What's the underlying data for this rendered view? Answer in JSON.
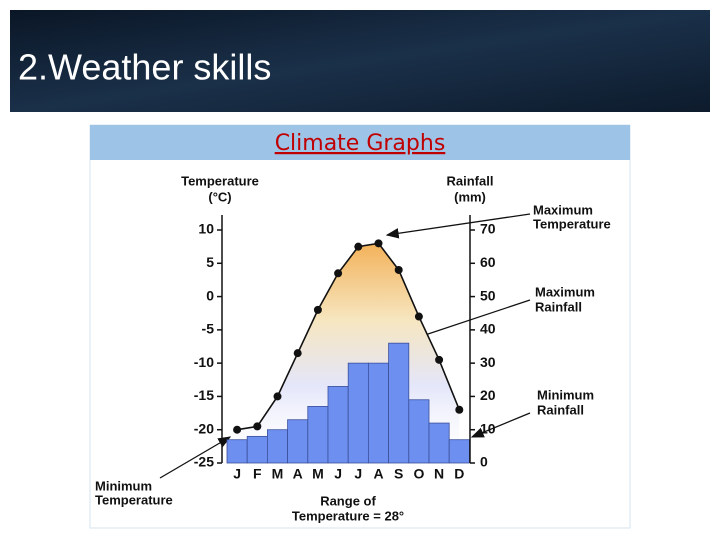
{
  "slide_title": "2.Weather skills",
  "chart_data": {
    "type": "climate",
    "title": "Climate Graphs",
    "ylabel": [
      "Temperature",
      "(°C)"
    ],
    "y2label": [
      "Rainfall",
      "(mm)"
    ],
    "categories": [
      "J",
      "F",
      "M",
      "A",
      "M",
      "J",
      "J",
      "A",
      "S",
      "O",
      "N",
      "D"
    ],
    "series": [
      {
        "name": "Rainfall",
        "type": "bar",
        "axis": "y2",
        "color": "#6d8ff0",
        "values": [
          7,
          8,
          10,
          13,
          17,
          23,
          30,
          30,
          36,
          19,
          12,
          7
        ]
      },
      {
        "name": "Temperature",
        "type": "line",
        "axis": "y",
        "color": "#111111",
        "values": [
          -20,
          -19.5,
          -15,
          -8.5,
          -2,
          3.5,
          7.5,
          8,
          4,
          -3,
          -9.5,
          -17
        ]
      }
    ],
    "ylim": [
      -25,
      10
    ],
    "yticks": [
      -25,
      -20,
      -15,
      -10,
      -5,
      0,
      5,
      10
    ],
    "y2lim": [
      0,
      70
    ],
    "y2ticks": [
      0,
      10,
      20,
      30,
      40,
      50,
      60,
      70
    ],
    "annotations": {
      "max_temperature": [
        "Maximum",
        "Temperature"
      ],
      "max_rainfall": [
        "Maximum",
        "Rainfall"
      ],
      "min_rainfall": [
        "Minimum",
        "Rainfall"
      ],
      "min_temperature": [
        "Minimum",
        "Temperature"
      ],
      "range": [
        "Range of",
        "Temperature = 28°"
      ]
    }
  }
}
